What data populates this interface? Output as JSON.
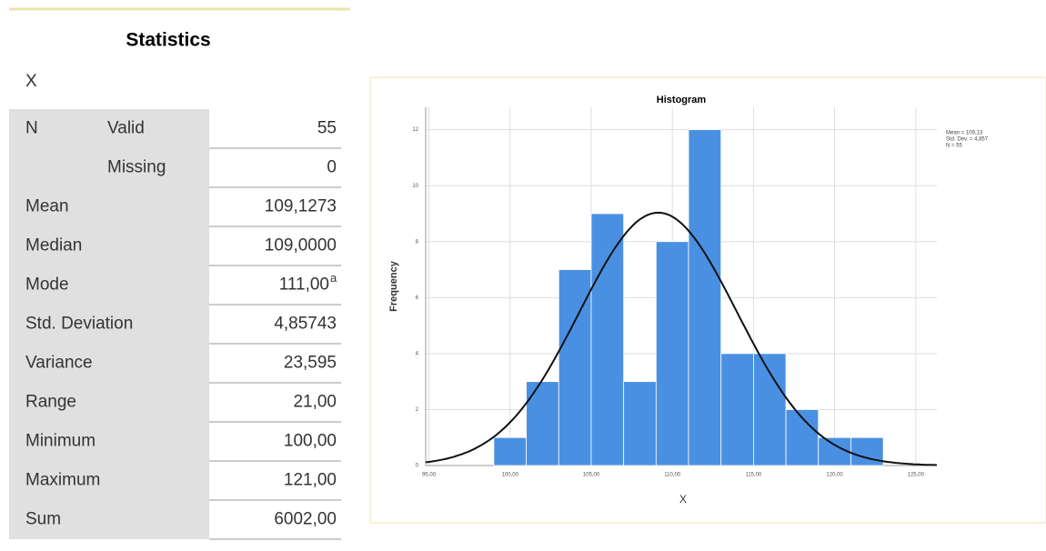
{
  "table": {
    "title": "Statistics",
    "subtitle": "X",
    "rows": [
      {
        "label": "N",
        "sublabel": "Valid",
        "value": "55"
      },
      {
        "sublabel": "Missing",
        "value": "0"
      },
      {
        "label": "Mean",
        "value": "109,1273"
      },
      {
        "label": "Median",
        "value": "109,0000"
      },
      {
        "label": "Mode",
        "value": "111,00",
        "footnote": "a"
      },
      {
        "label": "Std. Deviation",
        "value": "4,85743"
      },
      {
        "label": "Variance",
        "value": "23,595"
      },
      {
        "label": "Range",
        "value": "21,00"
      },
      {
        "label": "Minimum",
        "value": "100,00"
      },
      {
        "label": "Maximum",
        "value": "121,00"
      },
      {
        "label": "Sum",
        "value": "6002,00"
      }
    ]
  },
  "chart_data": {
    "type": "histogram",
    "title": "Histogram",
    "x_label": "X",
    "y_label": "Frequency",
    "bins": [
      99,
      101,
      103,
      105,
      107,
      109,
      111,
      113,
      115,
      117,
      119,
      121,
      123
    ],
    "values": [
      1,
      3,
      7,
      9,
      3,
      8,
      12,
      4,
      4,
      2,
      1,
      1
    ],
    "color": "#4a90e2",
    "xlim": [
      94.8,
      126.3
    ],
    "ylim": [
      0,
      12.8
    ],
    "xticks": [
      {
        "value": 95,
        "label": "95,00"
      },
      {
        "value": 100,
        "label": "100,00"
      },
      {
        "value": 105,
        "label": "105,00"
      },
      {
        "value": 110,
        "label": "110,00"
      },
      {
        "value": 115,
        "label": "115,00"
      },
      {
        "value": 120,
        "label": "120,00"
      },
      {
        "value": 125,
        "label": "125,00"
      }
    ],
    "yticks": [
      0,
      2,
      4,
      6,
      8,
      10,
      12
    ],
    "grid": true,
    "normal_curve": {
      "mean": 109.13,
      "sd": 4.857,
      "n": 55
    },
    "annotations": [
      "Mean = 109,13",
      "Std. Dev. = 4,857",
      "N = 55"
    ]
  }
}
